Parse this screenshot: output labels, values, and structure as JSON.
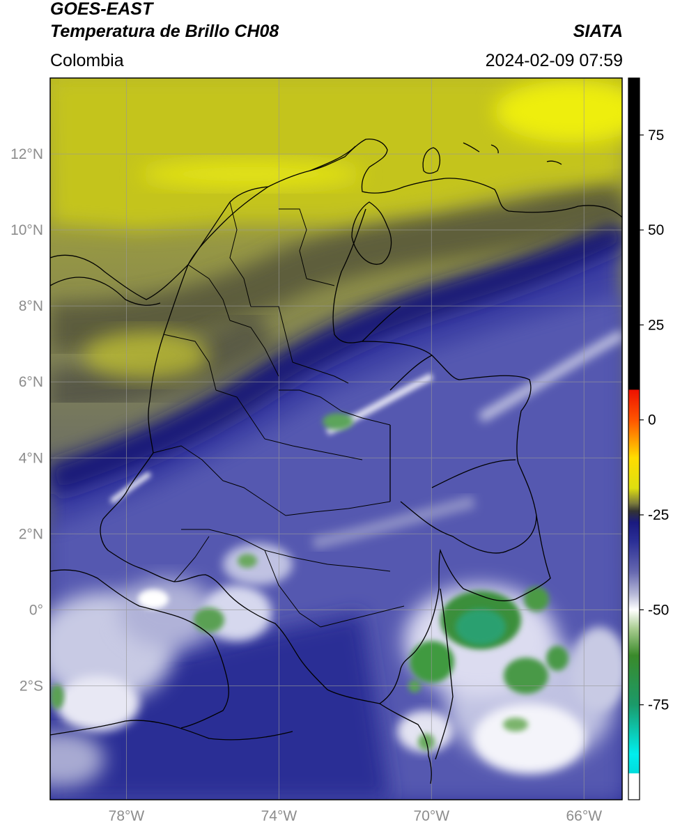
{
  "header": {
    "satellite": "GOES-EAST",
    "product": "Temperatura de Brillo CH08",
    "brand": "SIATA",
    "region": "Colombia",
    "timestamp": "2024-02-09 07:59"
  },
  "map": {
    "lon_range": [
      -80,
      -65
    ],
    "lat_range": [
      -5,
      14
    ],
    "lat_ticks": [
      {
        "value": 12,
        "label": "12°N"
      },
      {
        "value": 10,
        "label": "10°N"
      },
      {
        "value": 8,
        "label": "8°N"
      },
      {
        "value": 6,
        "label": "6°N"
      },
      {
        "value": 4,
        "label": "4°N"
      },
      {
        "value": 2,
        "label": "2°N"
      },
      {
        "value": 0,
        "label": "0°"
      },
      {
        "value": -2,
        "label": "2°S"
      }
    ],
    "lon_ticks": [
      {
        "value": -78,
        "label": "78°W"
      },
      {
        "value": -74,
        "label": "74°W"
      },
      {
        "value": -70,
        "label": "70°W"
      },
      {
        "value": -66,
        "label": "66°W"
      }
    ]
  },
  "colorbar": {
    "range": [
      -100,
      90
    ],
    "ticks": [
      {
        "value": 75,
        "label": "75"
      },
      {
        "value": 50,
        "label": "50"
      },
      {
        "value": 25,
        "label": "25"
      },
      {
        "value": 0,
        "label": "0"
      },
      {
        "value": -25,
        "label": "-25"
      },
      {
        "value": -50,
        "label": "-50"
      },
      {
        "value": -75,
        "label": "-75"
      }
    ],
    "stops": [
      {
        "value": 90,
        "color": "#000000"
      },
      {
        "value": 8,
        "color": "#000000"
      },
      {
        "value": 7.9,
        "color": "#ee1100"
      },
      {
        "value": 0,
        "color": "#ff5500"
      },
      {
        "value": -10,
        "color": "#ffdd00"
      },
      {
        "value": -18,
        "color": "#dede10"
      },
      {
        "value": -22,
        "color": "#7a7a3c"
      },
      {
        "value": -24,
        "color": "#333333"
      },
      {
        "value": -27,
        "color": "#1a1a80"
      },
      {
        "value": -32,
        "color": "#2b2f96"
      },
      {
        "value": -40,
        "color": "#6668b0"
      },
      {
        "value": -46,
        "color": "#b8bad8"
      },
      {
        "value": -50,
        "color": "#ffffff"
      },
      {
        "value": -55,
        "color": "#a8cc90"
      },
      {
        "value": -62,
        "color": "#3a8a2a"
      },
      {
        "value": -75,
        "color": "#1b9a6a"
      },
      {
        "value": -88,
        "color": "#00eeee"
      },
      {
        "value": -93,
        "color": "#00dddd"
      },
      {
        "value": -93.1,
        "color": "#ffffff"
      },
      {
        "value": -100,
        "color": "#ffffff"
      }
    ]
  }
}
